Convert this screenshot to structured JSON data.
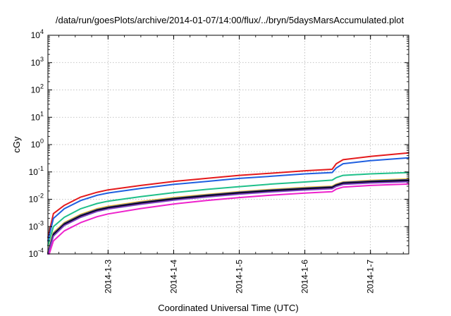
{
  "chart_data": {
    "type": "line",
    "title": "/data/run/goesPlots/archive/2014-01-07/14:00/flux/../bryn/5daysMarsAccumulated.plot",
    "xlabel": "Coordinated Universal Time (UTC)",
    "ylabel": "cGy",
    "y_scale": "log",
    "ylim": [
      0.0001,
      10000
    ],
    "xlim": [
      "2014-01-02 02:00",
      "2014-01-07 14:00"
    ],
    "x_tick_labels": [
      "2014-1-3",
      "2014-1-4",
      "2014-1-5",
      "2014-1-6",
      "2014-1-7"
    ],
    "x_ticks": [
      "2014-01-03",
      "2014-01-04",
      "2014-01-05",
      "2014-01-06",
      "2014-01-07"
    ],
    "y_ticks": [
      {
        "value": 0.0001,
        "base": "10",
        "exp": "-4"
      },
      {
        "value": 0.001,
        "base": "10",
        "exp": "-3"
      },
      {
        "value": 0.01,
        "base": "10",
        "exp": "-2"
      },
      {
        "value": 0.1,
        "base": "10",
        "exp": "-1"
      },
      {
        "value": 1,
        "base": "10",
        "exp": "0"
      },
      {
        "value": 10,
        "base": "10",
        "exp": "1"
      },
      {
        "value": 100,
        "base": "10",
        "exp": "2"
      },
      {
        "value": 1000,
        "base": "10",
        "exp": "3"
      },
      {
        "value": 10000,
        "base": "10",
        "exp": "4"
      }
    ],
    "grid": true,
    "series": [
      {
        "color": "#e41a1c",
        "points": [
          [
            "2014-01-02 02:00",
            0.0004
          ],
          [
            "2014-01-02 04:00",
            0.003
          ],
          [
            "2014-01-02 08:00",
            0.006
          ],
          [
            "2014-01-02 14:00",
            0.012
          ],
          [
            "2014-01-02 20:00",
            0.018
          ],
          [
            "2014-01-03 00:00",
            0.022
          ],
          [
            "2014-01-03 12:00",
            0.032
          ],
          [
            "2014-01-04 00:00",
            0.045
          ],
          [
            "2014-01-04 12:00",
            0.058
          ],
          [
            "2014-01-05 00:00",
            0.075
          ],
          [
            "2014-01-05 12:00",
            0.09
          ],
          [
            "2014-01-06 00:00",
            0.11
          ],
          [
            "2014-01-06 10:00",
            0.125
          ],
          [
            "2014-01-06 11:30",
            0.2
          ],
          [
            "2014-01-06 14:00",
            0.28
          ],
          [
            "2014-01-07 00:00",
            0.37
          ],
          [
            "2014-01-07 14:00",
            0.5
          ]
        ]
      },
      {
        "color": "#1f5fe0",
        "points": [
          [
            "2014-01-02 02:00",
            0.0003
          ],
          [
            "2014-01-02 04:00",
            0.002
          ],
          [
            "2014-01-02 08:00",
            0.0045
          ],
          [
            "2014-01-02 14:00",
            0.009
          ],
          [
            "2014-01-02 20:00",
            0.014
          ],
          [
            "2014-01-03 00:00",
            0.017
          ],
          [
            "2014-01-03 12:00",
            0.025
          ],
          [
            "2014-01-04 00:00",
            0.035
          ],
          [
            "2014-01-04 12:00",
            0.045
          ],
          [
            "2014-01-05 00:00",
            0.058
          ],
          [
            "2014-01-05 12:00",
            0.07
          ],
          [
            "2014-01-06 00:00",
            0.085
          ],
          [
            "2014-01-06 10:00",
            0.095
          ],
          [
            "2014-01-06 11:30",
            0.14
          ],
          [
            "2014-01-06 14:00",
            0.2
          ],
          [
            "2014-01-07 00:00",
            0.26
          ],
          [
            "2014-01-07 14:00",
            0.33
          ]
        ]
      },
      {
        "color": "#1fc08a",
        "points": [
          [
            "2014-01-02 02:00",
            0.0002
          ],
          [
            "2014-01-02 04:00",
            0.001
          ],
          [
            "2014-01-02 08:00",
            0.0022
          ],
          [
            "2014-01-02 14:00",
            0.0045
          ],
          [
            "2014-01-02 20:00",
            0.007
          ],
          [
            "2014-01-03 00:00",
            0.0085
          ],
          [
            "2014-01-03 12:00",
            0.0125
          ],
          [
            "2014-01-04 00:00",
            0.0175
          ],
          [
            "2014-01-04 12:00",
            0.023
          ],
          [
            "2014-01-05 00:00",
            0.029
          ],
          [
            "2014-01-05 12:00",
            0.036
          ],
          [
            "2014-01-06 00:00",
            0.043
          ],
          [
            "2014-01-06 10:00",
            0.05
          ],
          [
            "2014-01-06 11:30",
            0.062
          ],
          [
            "2014-01-06 14:00",
            0.075
          ],
          [
            "2014-01-07 00:00",
            0.085
          ],
          [
            "2014-01-07 14:00",
            0.095
          ]
        ]
      },
      {
        "color": "#e8c020",
        "points": [
          [
            "2014-01-02 02:00",
            0.00012
          ],
          [
            "2014-01-02 04:00",
            0.0006
          ],
          [
            "2014-01-02 08:00",
            0.0014
          ],
          [
            "2014-01-02 14:00",
            0.0028
          ],
          [
            "2014-01-02 20:00",
            0.0045
          ],
          [
            "2014-01-03 00:00",
            0.0055
          ],
          [
            "2014-01-03 12:00",
            0.0082
          ],
          [
            "2014-01-04 00:00",
            0.0115
          ],
          [
            "2014-01-04 12:00",
            0.015
          ],
          [
            "2014-01-05 00:00",
            0.019
          ],
          [
            "2014-01-05 12:00",
            0.023
          ],
          [
            "2014-01-06 00:00",
            0.027
          ],
          [
            "2014-01-06 10:00",
            0.03
          ],
          [
            "2014-01-06 11:30",
            0.036
          ],
          [
            "2014-01-06 14:00",
            0.043
          ],
          [
            "2014-01-07 00:00",
            0.049
          ],
          [
            "2014-01-07 14:00",
            0.055
          ]
        ]
      },
      {
        "color": "#333399",
        "points": [
          [
            "2014-01-02 02:00",
            0.00011
          ],
          [
            "2014-01-02 04:00",
            0.00055
          ],
          [
            "2014-01-02 08:00",
            0.0013
          ],
          [
            "2014-01-02 14:00",
            0.0026
          ],
          [
            "2014-01-02 20:00",
            0.0042
          ],
          [
            "2014-01-03 00:00",
            0.0051
          ],
          [
            "2014-01-03 12:00",
            0.0077
          ],
          [
            "2014-01-04 00:00",
            0.0108
          ],
          [
            "2014-01-04 12:00",
            0.0142
          ],
          [
            "2014-01-05 00:00",
            0.018
          ],
          [
            "2014-01-05 12:00",
            0.0218
          ],
          [
            "2014-01-06 00:00",
            0.0255
          ],
          [
            "2014-01-06 10:00",
            0.0285
          ],
          [
            "2014-01-06 11:30",
            0.034
          ],
          [
            "2014-01-06 14:00",
            0.041
          ],
          [
            "2014-01-07 00:00",
            0.046
          ],
          [
            "2014-01-07 14:00",
            0.052
          ]
        ]
      },
      {
        "color": "#000000",
        "points": [
          [
            "2014-01-02 02:00",
            0.0001
          ],
          [
            "2014-01-02 04:00",
            0.0005
          ],
          [
            "2014-01-02 08:00",
            0.0012
          ],
          [
            "2014-01-02 14:00",
            0.0024
          ],
          [
            "2014-01-02 20:00",
            0.0039
          ],
          [
            "2014-01-03 00:00",
            0.0048
          ],
          [
            "2014-01-03 12:00",
            0.0072
          ],
          [
            "2014-01-04 00:00",
            0.0101
          ],
          [
            "2014-01-04 12:00",
            0.0133
          ],
          [
            "2014-01-05 00:00",
            0.0168
          ],
          [
            "2014-01-05 12:00",
            0.0204
          ],
          [
            "2014-01-06 00:00",
            0.0238
          ],
          [
            "2014-01-06 10:00",
            0.0266
          ],
          [
            "2014-01-06 11:30",
            0.032
          ],
          [
            "2014-01-06 14:00",
            0.038
          ],
          [
            "2014-01-07 00:00",
            0.043
          ],
          [
            "2014-01-07 14:00",
            0.048
          ]
        ]
      },
      {
        "color": "#7a3fc0",
        "points": [
          [
            "2014-01-02 02:00",
            0.0001
          ],
          [
            "2014-01-02 04:00",
            0.00045
          ],
          [
            "2014-01-02 08:00",
            0.0011
          ],
          [
            "2014-01-02 14:00",
            0.0022
          ],
          [
            "2014-01-02 20:00",
            0.0036
          ],
          [
            "2014-01-03 00:00",
            0.0044
          ],
          [
            "2014-01-03 12:00",
            0.0066
          ],
          [
            "2014-01-04 00:00",
            0.0093
          ],
          [
            "2014-01-04 12:00",
            0.0122
          ],
          [
            "2014-01-05 00:00",
            0.0154
          ],
          [
            "2014-01-05 12:00",
            0.0187
          ],
          [
            "2014-01-06 00:00",
            0.0218
          ],
          [
            "2014-01-06 10:00",
            0.0244
          ],
          [
            "2014-01-06 11:30",
            0.0295
          ],
          [
            "2014-01-06 14:00",
            0.035
          ],
          [
            "2014-01-07 00:00",
            0.0395
          ],
          [
            "2014-01-07 14:00",
            0.044
          ]
        ]
      },
      {
        "color": "#ee22cc",
        "points": [
          [
            "2014-01-02 02:30",
            0.0001
          ],
          [
            "2014-01-02 04:00",
            0.0003
          ],
          [
            "2014-01-02 08:00",
            0.0007
          ],
          [
            "2014-01-02 14:00",
            0.0014
          ],
          [
            "2014-01-02 20:00",
            0.0023
          ],
          [
            "2014-01-03 00:00",
            0.0029
          ],
          [
            "2014-01-03 12:00",
            0.0046
          ],
          [
            "2014-01-04 00:00",
            0.0067
          ],
          [
            "2014-01-04 12:00",
            0.009
          ],
          [
            "2014-01-05 00:00",
            0.0115
          ],
          [
            "2014-01-05 12:00",
            0.0142
          ],
          [
            "2014-01-06 00:00",
            0.0168
          ],
          [
            "2014-01-06 10:00",
            0.019
          ],
          [
            "2014-01-06 11:30",
            0.0235
          ],
          [
            "2014-01-06 14:00",
            0.028
          ],
          [
            "2014-01-07 00:00",
            0.032
          ],
          [
            "2014-01-07 14:00",
            0.036
          ]
        ]
      }
    ]
  }
}
